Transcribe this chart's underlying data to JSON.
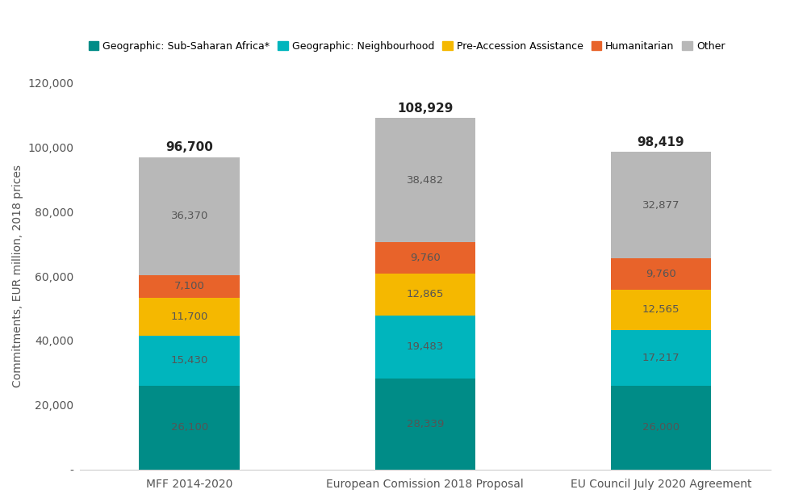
{
  "categories": [
    "MFF 2014-2020",
    "European Comission 2018 Proposal",
    "EU Council July 2020 Agreement"
  ],
  "series": [
    {
      "name": "Geographic: Sub-Saharan Africa*",
      "color": "#008c87",
      "values": [
        26100,
        28339,
        26000
      ]
    },
    {
      "name": "Geographic: Neighbourhood",
      "color": "#00b5bd",
      "values": [
        15430,
        19483,
        17217
      ]
    },
    {
      "name": "Pre-Accession Assistance",
      "color": "#f5b800",
      "values": [
        11700,
        12865,
        12565
      ]
    },
    {
      "name": "Humanitarian",
      "color": "#e8632a",
      "values": [
        7100,
        9760,
        9760
      ]
    },
    {
      "name": "Other",
      "color": "#b8b8b8",
      "values": [
        36370,
        38482,
        32877
      ]
    }
  ],
  "totals": [
    96700,
    108929,
    98419
  ],
  "ylabel": "Commitments, EUR million, 2018 prices",
  "ylim": [
    0,
    120000
  ],
  "yticks": [
    0,
    20000,
    40000,
    60000,
    80000,
    100000,
    120000
  ],
  "ytick_labels": [
    "-",
    "20,000",
    "40,000",
    "60,000",
    "80,000",
    "100,000",
    "120,000"
  ],
  "bar_width": 0.32,
  "label_color": "#555555",
  "label_fontsize": 9.5,
  "total_fontsize": 11,
  "legend_fontsize": 9,
  "background_color": "#ffffff",
  "x_positions": [
    0.25,
    1.0,
    1.75
  ]
}
